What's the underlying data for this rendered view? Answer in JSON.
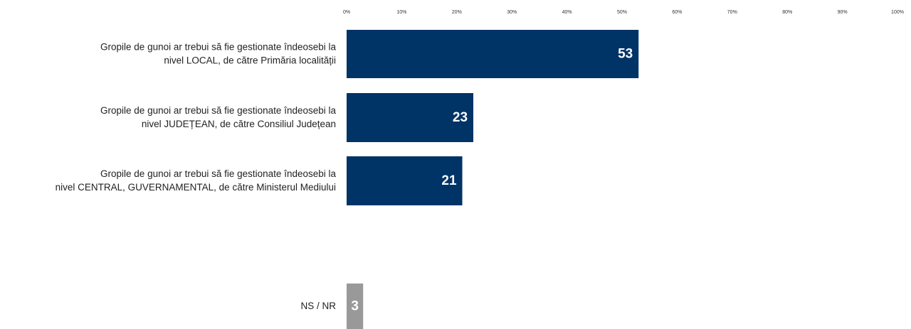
{
  "chart_data": {
    "type": "bar",
    "orientation": "horizontal",
    "xlim": [
      0,
      100
    ],
    "tick_values": [
      0,
      10,
      20,
      30,
      40,
      50,
      60,
      70,
      80,
      90,
      100
    ],
    "tick_labels": [
      "0%",
      "10%",
      "20%",
      "30%",
      "40%",
      "50%",
      "60%",
      "70%",
      "80%",
      "90%",
      "100%"
    ],
    "grid": false,
    "categories": [
      [
        "Gropile de gunoi ar trebui să fie gestionate îndeosebi la",
        "nivel LOCAL, de către Primăria localității"
      ],
      [
        "Gropile de gunoi ar trebui să fie gestionate îndeosebi la",
        "nivel JUDEȚEAN, de către Consiliul Județean"
      ],
      [
        "Gropile de gunoi ar trebui să fie gestionate îndeosebi la",
        "nivel CENTRAL, GUVERNAMENTAL, de către Ministerul Mediului"
      ],
      [
        "NS / NR"
      ]
    ],
    "values": [
      53,
      23,
      21,
      3
    ],
    "data_labels": [
      "53",
      "23",
      "21",
      "3"
    ],
    "colors": [
      "#003366",
      "#003366",
      "#003366",
      "#999999"
    ]
  }
}
